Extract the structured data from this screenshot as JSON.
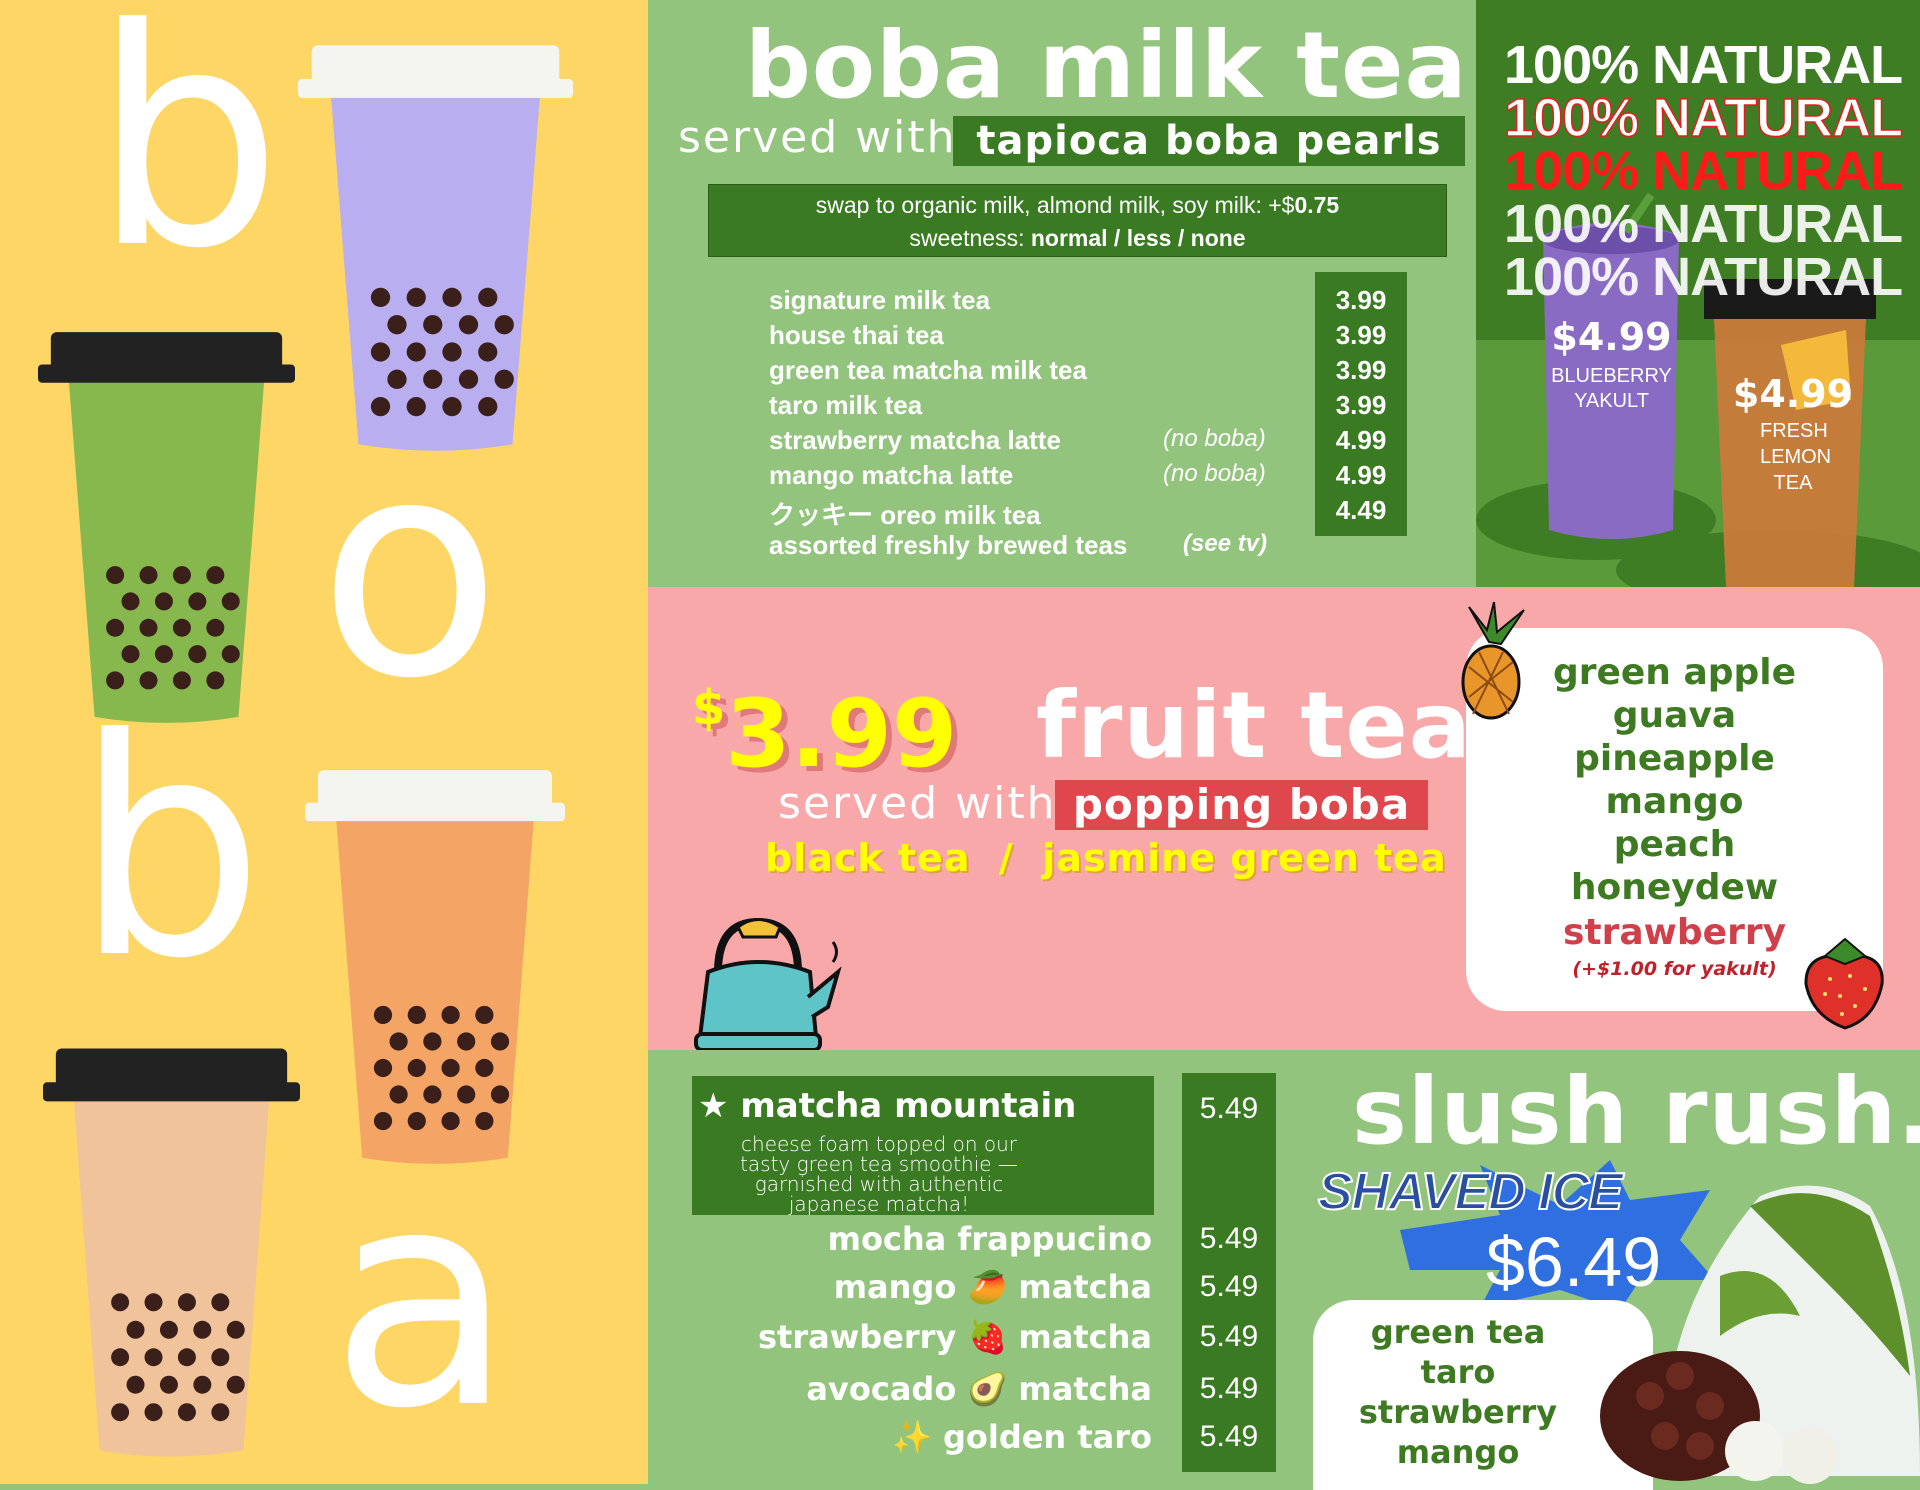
{
  "colors": {
    "yellow": "#fdd666",
    "green": "#93c47d",
    "dark_green": "#3a7a22",
    "pink": "#f9a8a9",
    "red": "#e0474c",
    "price_yellow": "#ffff00"
  },
  "left": {
    "letters": [
      "b",
      "o",
      "b",
      "a"
    ],
    "cups": [
      {
        "name": "taro-cup",
        "color": "#b9aef0",
        "lid": "#f5f5f0"
      },
      {
        "name": "matcha-cup",
        "color": "#86b84d",
        "lid": "#222"
      },
      {
        "name": "thai-tea-cup",
        "color": "#f4a464",
        "lid": "#f5f5f0"
      },
      {
        "name": "milk-tea-cup",
        "color": "#f1c39a",
        "lid": "#222"
      }
    ]
  },
  "milk_tea": {
    "title": "boba milk tea.",
    "served_with": "served with",
    "pearls": "tapioca boba pearls",
    "swap_text": "swap to organic milk, almond milk, soy milk: +$",
    "swap_price": "0.75",
    "sweetness_label": "sweetness:",
    "sweetness_options": "normal / less / none",
    "items": [
      {
        "name": "signature milk tea",
        "note": "",
        "price": "3.99"
      },
      {
        "name": "house thai tea",
        "note": "",
        "price": "3.99"
      },
      {
        "name": "green tea matcha milk tea",
        "note": "",
        "price": "3.99"
      },
      {
        "name": "taro milk tea",
        "note": "",
        "price": "3.99"
      },
      {
        "name": "strawberry matcha latte",
        "note": "(no boba)",
        "price": "4.99"
      },
      {
        "name": "mango matcha latte",
        "note": "(no boba)",
        "price": "4.99"
      },
      {
        "name": "クッキー oreo milk tea",
        "note": "",
        "price": "4.49"
      },
      {
        "name": "assorted freshly brewed teas",
        "note": "(see tv)",
        "price": ""
      }
    ]
  },
  "natural": {
    "lines": [
      "100% NATURAL",
      "100% NATURAL",
      "100% NATURAL",
      "100% NATURAL",
      "100% NATURAL"
    ],
    "drink1": {
      "price": "$4.99",
      "name": "BLUEBERRY YAKULT"
    },
    "drink2": {
      "price": "$4.99",
      "name": "FRESH LEMON TEA"
    }
  },
  "fruit_tea": {
    "dollar": "$",
    "price": "3.99",
    "title": "fruit tea.",
    "served_with": "served with",
    "popping": "popping boba",
    "teas": "black tea  /  jasmine green tea",
    "flavors": [
      "green apple",
      "guava",
      "pineapple",
      "mango",
      "peach",
      "honeydew"
    ],
    "special": "strawberry",
    "special_note": "(+$1.00 for yakult)"
  },
  "blended": {
    "featured": {
      "name": "★ matcha mountain",
      "desc": "cheese foam topped on our tasty green tea smoothie — garnished with authentic japanese matcha!",
      "price": "5.49"
    },
    "items": [
      {
        "name": "mocha frappucino",
        "price": "5.49"
      },
      {
        "name": "mango 🥭 matcha",
        "price": "5.49"
      },
      {
        "name": "strawberry 🍓 matcha",
        "price": "5.49"
      },
      {
        "name": "avocado 🥑 matcha",
        "price": "5.49"
      },
      {
        "name": "✨ golden taro",
        "price": "5.49"
      }
    ]
  },
  "slush": {
    "title": "slush rush.",
    "subtitle": "SHAVED ICE",
    "price": "$6.49",
    "flavors": [
      "green tea",
      "taro",
      "strawberry",
      "mango"
    ]
  }
}
